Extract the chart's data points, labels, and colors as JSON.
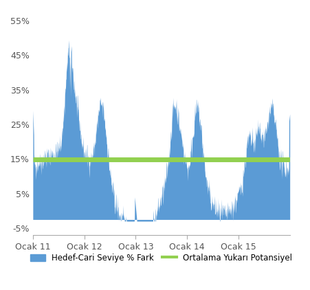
{
  "title": "",
  "ylabel": "",
  "xlabel": "",
  "ylim": [
    -0.07,
    0.58
  ],
  "yticks": [
    -0.05,
    0.05,
    0.15,
    0.25,
    0.35,
    0.45,
    0.55
  ],
  "ytick_labels": [
    "-5%",
    "5%",
    "15%",
    "25%",
    "35%",
    "45%",
    "55%"
  ],
  "xtick_positions": [
    0.0,
    0.2,
    0.4,
    0.6,
    0.8
  ],
  "xtick_labels": [
    "Ocak 11",
    "Ocak 12",
    "Ocak 13",
    "Ocak 14",
    "Ocak 15"
  ],
  "area_color": "#5B9BD5",
  "area_alpha": 1.0,
  "line_color": "#92D050",
  "line_value": 0.148,
  "line_width": 5,
  "legend_labels": [
    "Hedef-Cari Seviye % Fark",
    "Ortalama Yukarı Potansiyel"
  ],
  "background_color": "#ffffff",
  "spine_color": "#aaaaaa",
  "baseline": -0.025
}
